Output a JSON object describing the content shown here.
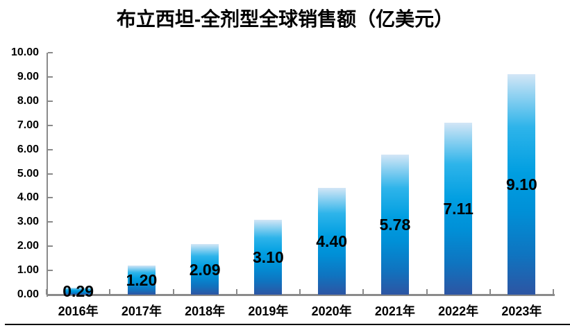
{
  "chart_data": {
    "type": "bar",
    "title": "布立西坦-全剂型全球销售额（亿美元）",
    "categories": [
      "2016年",
      "2017年",
      "2018年",
      "2019年",
      "2020年",
      "2021年",
      "2022年",
      "2023年"
    ],
    "values": [
      0.29,
      1.2,
      2.09,
      3.1,
      4.4,
      5.78,
      7.11,
      9.1
    ],
    "data_labels": [
      "0.29",
      "1.20",
      "2.09",
      "3.10",
      "4.40",
      "5.78",
      "7.11",
      "9.10"
    ],
    "y_tick_labels": [
      "0.00",
      "1.00",
      "2.00",
      "3.00",
      "4.00",
      "5.00",
      "6.00",
      "7.00",
      "8.00",
      "9.00",
      "10.00"
    ],
    "ylim": [
      0,
      10
    ],
    "grid": false,
    "legend": false,
    "data_label_position": "center",
    "colors": {
      "bar_gradient_top_to_bottom": [
        "#d3e6f6",
        "#9bd5f2",
        "#2eb4ea",
        "#009ee1",
        "#0090d7",
        "#0f74c0",
        "#2d55a3"
      ],
      "axis": "#8a8a8a",
      "text": "#000000",
      "background": "#ffffff"
    }
  }
}
